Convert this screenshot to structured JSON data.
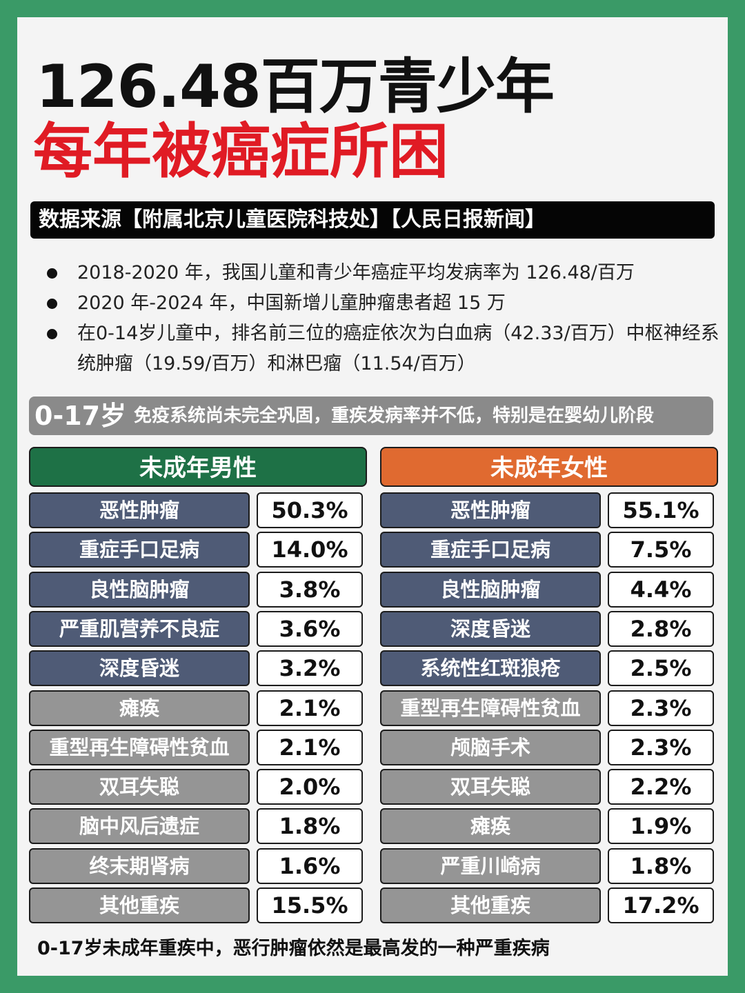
{
  "title_line1": "126.48百万青少年",
  "title_line2": "每年被癌症所困",
  "source": "数据来源【附属北京儿童医院科技处】【人民日报新闻】",
  "bullets": [
    "2018-2020 年，我国儿童和青少年癌症平均发病率为 126.48/百万",
    "2020 年-2024 年，中国新增儿童肿瘤患者超 15 万",
    "在0-14岁儿童中，排名前三位的癌症依次为白血病（42.33/百万）中枢神经系统肿瘤（19.59/百万）和淋巴瘤（11.54/百万）"
  ],
  "age_bar": {
    "age": "0-17岁",
    "desc": "免疫系统尚未完全巩固，重疾发病率并不低，特别是在婴幼儿阶段"
  },
  "male": {
    "header": "未成年男性",
    "color": "#1e7146",
    "rows": [
      {
        "label": "恶性肿瘤",
        "value": "50.3%"
      },
      {
        "label": "重症手口足病",
        "value": "14.0%"
      },
      {
        "label": "良性脑肿瘤",
        "value": "3.8%"
      },
      {
        "label": "严重肌营养不良症",
        "value": "3.6%"
      },
      {
        "label": "深度昏迷",
        "value": "3.2%"
      },
      {
        "label": "瘫痪",
        "value": "2.1%"
      },
      {
        "label": "重型再生障碍性贫血",
        "value": "2.1%"
      },
      {
        "label": "双耳失聪",
        "value": "2.0%"
      },
      {
        "label": "脑中风后遗症",
        "value": "1.8%"
      },
      {
        "label": "终末期肾病",
        "value": "1.6%"
      },
      {
        "label": "其他重疾",
        "value": "15.5%"
      }
    ]
  },
  "female": {
    "header": "未成年女性",
    "color": "#e06a30",
    "rows": [
      {
        "label": "恶性肿瘤",
        "value": "55.1%"
      },
      {
        "label": "重症手口足病",
        "value": "7.5%"
      },
      {
        "label": "良性脑肿瘤",
        "value": "4.4%"
      },
      {
        "label": "深度昏迷",
        "value": "2.8%"
      },
      {
        "label": "系统性红斑狼疮",
        "value": "2.5%"
      },
      {
        "label": "重型再生障碍性贫血",
        "value": "2.3%"
      },
      {
        "label": "颅脑手术",
        "value": "2.3%"
      },
      {
        "label": "双耳失聪",
        "value": "2.2%"
      },
      {
        "label": "瘫痪",
        "value": "1.9%"
      },
      {
        "label": "严重川崎病",
        "value": "1.8%"
      },
      {
        "label": "其他重疾",
        "value": "17.2%"
      }
    ]
  },
  "footer": "0-17岁未成年重疾中，恶行肿瘤依然是最高发的一种严重疾病"
}
